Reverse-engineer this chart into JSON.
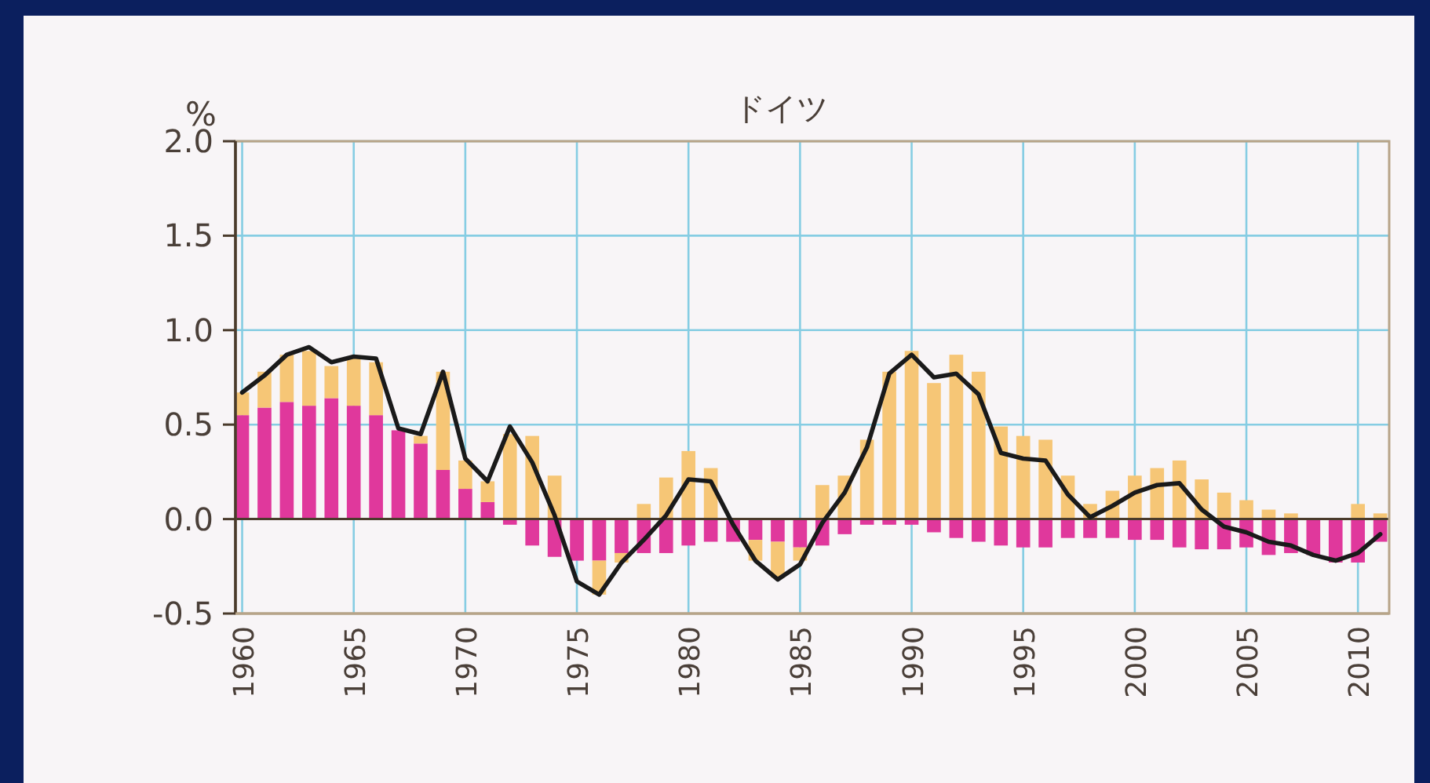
{
  "chart_data": {
    "type": "bar",
    "title": "ドイツ",
    "ylabel": "%",
    "stacked": true,
    "grid": true,
    "x": [
      1960,
      1961,
      1962,
      1963,
      1964,
      1965,
      1966,
      1967,
      1968,
      1969,
      1970,
      1971,
      1972,
      1973,
      1974,
      1975,
      1976,
      1977,
      1978,
      1979,
      1980,
      1981,
      1982,
      1983,
      1984,
      1985,
      1986,
      1987,
      1988,
      1989,
      1990,
      1991,
      1992,
      1993,
      1994,
      1995,
      1996,
      1997,
      1998,
      1999,
      2000,
      2001,
      2002,
      2003,
      2004,
      2005,
      2006,
      2007,
      2008,
      2009,
      2010,
      2011
    ],
    "xlim": [
      1959.7,
      2011.4
    ],
    "xticks": [
      1960,
      1965,
      1970,
      1975,
      1980,
      1985,
      1990,
      1995,
      2000,
      2005,
      2010
    ],
    "ylim": [
      -0.5,
      2.0
    ],
    "yticks": [
      {
        "value": -0.5,
        "label": "-0.5"
      },
      {
        "value": 0,
        "label": "0.0"
      },
      0.5,
      {
        "value": 1,
        "label": "1.0"
      },
      1.5,
      {
        "value": 2,
        "label": "2.0"
      }
    ],
    "series": [
      {
        "color": "#e0389c",
        "values": [
          0.55,
          0.59,
          0.62,
          0.6,
          0.64,
          0.6,
          0.55,
          0.47,
          0.4,
          0.26,
          0.16,
          0.09,
          -0.03,
          -0.14,
          -0.2,
          -0.22,
          -0.22,
          -0.18,
          -0.18,
          -0.18,
          -0.14,
          -0.12,
          -0.12,
          -0.11,
          -0.12,
          -0.15,
          -0.14,
          -0.08,
          -0.03,
          -0.03,
          -0.03,
          -0.07,
          -0.1,
          -0.12,
          -0.14,
          -0.15,
          -0.15,
          -0.1,
          -0.1,
          -0.1,
          -0.11,
          -0.11,
          -0.15,
          -0.16,
          -0.16,
          -0.15,
          -0.19,
          -0.18,
          -0.19,
          -0.23,
          -0.23,
          -0.12
        ]
      },
      {
        "color": "#f6c676",
        "values": [
          0.12,
          0.19,
          0.25,
          0.29,
          0.17,
          0.26,
          0.28,
          0,
          0.04,
          0.52,
          0.15,
          0.11,
          0.45,
          0.44,
          0.23,
          0,
          -0.18,
          -0.05,
          0.08,
          0.22,
          0.36,
          0.27,
          0,
          -0.11,
          -0.19,
          -0.07,
          0.18,
          0.23,
          0.42,
          0.78,
          0.89,
          0.72,
          0.87,
          0.78,
          0.49,
          0.44,
          0.42,
          0.23,
          0.08,
          0.15,
          0.23,
          0.27,
          0.31,
          0.21,
          0.14,
          0.1,
          0.05,
          0.03,
          0,
          0,
          0.08,
          0.03
        ]
      },
      {
        "type": "line",
        "color": "#1a1a1a",
        "values": [
          0.67,
          0.76,
          0.87,
          0.91,
          0.83,
          0.86,
          0.85,
          0.48,
          0.45,
          0.78,
          0.32,
          0.2,
          0.49,
          0.3,
          0.02,
          -0.33,
          -0.4,
          -0.23,
          -0.11,
          0.02,
          0.21,
          0.2,
          -0.03,
          -0.22,
          -0.32,
          -0.24,
          -0.02,
          0.14,
          0.38,
          0.77,
          0.87,
          0.75,
          0.77,
          0.66,
          0.35,
          0.32,
          0.31,
          0.13,
          0.01,
          0.07,
          0.14,
          0.18,
          0.19,
          0.05,
          -0.04,
          -0.07,
          -0.12,
          -0.14,
          -0.19,
          -0.22,
          -0.18,
          -0.08
        ]
      }
    ]
  }
}
